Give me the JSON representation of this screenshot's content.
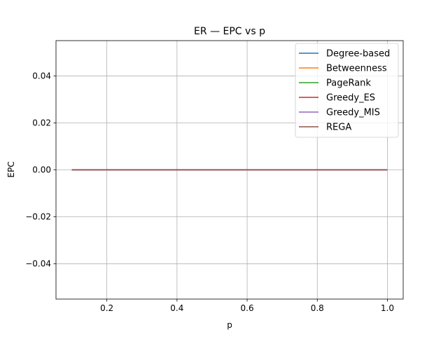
{
  "chart_data": {
    "type": "line",
    "title": "ER — EPC vs p",
    "xlabel": "p",
    "ylabel": "EPC",
    "xlim": [
      0.055,
      1.045
    ],
    "ylim": [
      -0.055,
      0.055
    ],
    "xticks": [
      0.2,
      0.4,
      0.6,
      0.8,
      1.0
    ],
    "xtick_labels": [
      "0.2",
      "0.4",
      "0.6",
      "0.8",
      "1.0"
    ],
    "yticks": [
      -0.04,
      -0.02,
      0.0,
      0.02,
      0.04
    ],
    "ytick_labels": [
      "−0.04",
      "−0.02",
      "0.00",
      "0.02",
      "0.04"
    ],
    "grid": true,
    "legend_position": "top-right",
    "x": [
      0.1,
      1.0
    ],
    "series": [
      {
        "name": "Degree-based",
        "color": "#1f77b4",
        "values": [
          0,
          0
        ]
      },
      {
        "name": "Betweenness",
        "color": "#ff7f0e",
        "values": [
          0,
          0
        ]
      },
      {
        "name": "PageRank",
        "color": "#2ca02c",
        "values": [
          0,
          0
        ]
      },
      {
        "name": "Greedy_ES",
        "color": "#d62728",
        "values": [
          0,
          0
        ]
      },
      {
        "name": "Greedy_MIS",
        "color": "#9467bd",
        "values": [
          0,
          0
        ]
      },
      {
        "name": "REGA",
        "color": "#8c564b",
        "values": [
          0,
          0
        ]
      }
    ]
  }
}
